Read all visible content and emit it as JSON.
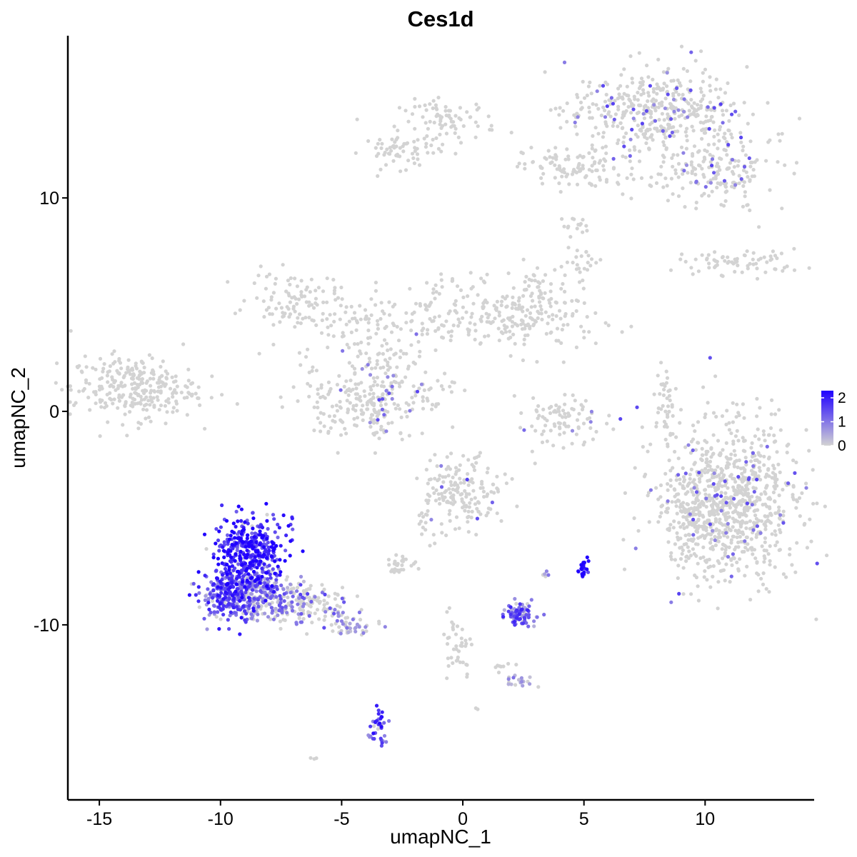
{
  "chart_data": {
    "type": "scatter",
    "title": "Ces1d",
    "xlabel": "umapNC_1",
    "ylabel": "umapNC_2",
    "xlim": [
      -16.3,
      14.5
    ],
    "ylim": [
      -18.2,
      17.6
    ],
    "xticks": [
      -15,
      -10,
      -5,
      0,
      5,
      10
    ],
    "yticks": [
      -10,
      0,
      10
    ],
    "grid": false,
    "legend_position": "right",
    "color_scale": {
      "low_color": "#d3d3d3",
      "high_color": "#1f00ff",
      "min": 0,
      "max": 2.3,
      "ticks": [
        0,
        1,
        2
      ]
    },
    "clusters": [
      {
        "cx": 8.0,
        "cy": 14.1,
        "sx": 1.8,
        "sy": 1.0,
        "n": 420,
        "expr": 0.03
      },
      {
        "cx": 10.0,
        "cy": 11.3,
        "sx": 1.6,
        "sy": 0.9,
        "n": 200,
        "expr": 0.03
      },
      {
        "cx": 4.5,
        "cy": 11.4,
        "sx": 1.0,
        "sy": 0.5,
        "n": 100,
        "expr": 0.0
      },
      {
        "cx": 11.5,
        "cy": 7.0,
        "sx": 1.3,
        "sy": 0.3,
        "n": 70,
        "expr": 0.0
      },
      {
        "cx": 3.0,
        "cy": 5.8,
        "sx": 0.7,
        "sy": 0.6,
        "n": 40,
        "expr": 0.0
      },
      {
        "cx": 5.0,
        "cy": 7.0,
        "sx": 0.4,
        "sy": 0.3,
        "n": 20,
        "expr": 0.0
      },
      {
        "cx": 4.6,
        "cy": 8.7,
        "sx": 0.3,
        "sy": 0.2,
        "n": 15,
        "expr": 0.0
      },
      {
        "cx": -0.6,
        "cy": 13.6,
        "sx": 1.0,
        "sy": 0.5,
        "n": 80,
        "expr": 0.0
      },
      {
        "cx": -2.5,
        "cy": 12.2,
        "sx": 0.8,
        "sy": 0.4,
        "n": 60,
        "expr": 0.0
      },
      {
        "cx": 2.5,
        "cy": 4.3,
        "sx": 1.5,
        "sy": 0.8,
        "n": 180,
        "expr": 0.0
      },
      {
        "cx": -7.0,
        "cy": 5.3,
        "sx": 0.9,
        "sy": 0.6,
        "n": 90,
        "expr": 0.0
      },
      {
        "cx": -4.5,
        "cy": 4.2,
        "sx": 1.3,
        "sy": 0.7,
        "n": 80,
        "expr": 0.0
      },
      {
        "cx": -1.0,
        "cy": 4.6,
        "sx": 1.0,
        "sy": 0.9,
        "n": 80,
        "expr": 0.0
      },
      {
        "cx": -2.8,
        "cy": 2.3,
        "sx": 0.9,
        "sy": 0.7,
        "n": 50,
        "expr": 0.02
      },
      {
        "cx": -4.0,
        "cy": 0.6,
        "sx": 1.3,
        "sy": 1.0,
        "n": 220,
        "expr": 0.02
      },
      {
        "cx": -1.5,
        "cy": 1.0,
        "sx": 0.6,
        "sy": 0.5,
        "n": 30,
        "expr": 0.0
      },
      {
        "cx": -13.6,
        "cy": 1.1,
        "sx": 1.3,
        "sy": 0.75,
        "n": 280,
        "expr": 0.0
      },
      {
        "cx": 4.1,
        "cy": -0.4,
        "sx": 1.0,
        "sy": 0.6,
        "n": 90,
        "expr": 0.02
      },
      {
        "cx": 8.3,
        "cy": 0.2,
        "sx": 0.2,
        "sy": 0.9,
        "n": 40,
        "expr": 0.0
      },
      {
        "cx": 11.0,
        "cy": -4.3,
        "sx": 1.4,
        "sy": 1.8,
        "n": 900,
        "expr": 0.02
      },
      {
        "cx": 9.3,
        "cy": -5.2,
        "sx": 0.4,
        "sy": 1.0,
        "n": 60,
        "expr": 0.0
      },
      {
        "cx": -0.1,
        "cy": -3.7,
        "sx": 0.8,
        "sy": 0.9,
        "n": 170,
        "expr": 0.02
      },
      {
        "cx": -2.5,
        "cy": -7.2,
        "sx": 0.3,
        "sy": 0.2,
        "n": 30,
        "expr": 0.03
      },
      {
        "cx": -1.4,
        "cy": -5.5,
        "sx": 0.3,
        "sy": 0.6,
        "n": 15,
        "expr": 0.0
      },
      {
        "cx": -8.8,
        "cy": -6.6,
        "sx": 0.7,
        "sy": 0.8,
        "n": 380,
        "expr": 0.85
      },
      {
        "cx": -9.6,
        "cy": -8.6,
        "sx": 0.6,
        "sy": 0.6,
        "n": 260,
        "expr": 0.6
      },
      {
        "cx": -8.3,
        "cy": -8.5,
        "sx": 0.7,
        "sy": 0.6,
        "n": 220,
        "expr": 0.35
      },
      {
        "cx": -6.5,
        "cy": -9.0,
        "sx": 0.9,
        "sy": 0.5,
        "n": 140,
        "expr": 0.08
      },
      {
        "cx": -4.6,
        "cy": -10.0,
        "sx": 0.5,
        "sy": 0.25,
        "n": 50,
        "expr": 0.15
      },
      {
        "cx": 2.4,
        "cy": -9.5,
        "sx": 0.35,
        "sy": 0.25,
        "n": 90,
        "expr": 0.5
      },
      {
        "cx": 5.0,
        "cy": -7.3,
        "sx": 0.1,
        "sy": 0.2,
        "n": 22,
        "expr": 0.95
      },
      {
        "cx": 2.3,
        "cy": -12.6,
        "sx": 0.3,
        "sy": 0.15,
        "n": 20,
        "expr": 0.15
      },
      {
        "cx": -3.5,
        "cy": -14.8,
        "sx": 0.15,
        "sy": 0.4,
        "n": 40,
        "expr": 0.6
      },
      {
        "cx": -0.3,
        "cy": -11.0,
        "sx": 0.35,
        "sy": 0.8,
        "n": 40,
        "expr": 0.0
      },
      {
        "cx": 3.4,
        "cy": -7.6,
        "sx": 0.1,
        "sy": 0.15,
        "n": 5,
        "expr": 0.1
      },
      {
        "cx": -6.1,
        "cy": -16.2,
        "sx": 0.1,
        "sy": 0.06,
        "n": 3,
        "expr": 0.05
      },
      {
        "cx": 0.6,
        "cy": -13.9,
        "sx": 0.05,
        "sy": 0.05,
        "n": 2,
        "expr": 0.0
      },
      {
        "cx": 1.5,
        "cy": -12.0,
        "sx": 0.3,
        "sy": 0.1,
        "n": 8,
        "expr": 0.0
      }
    ]
  }
}
